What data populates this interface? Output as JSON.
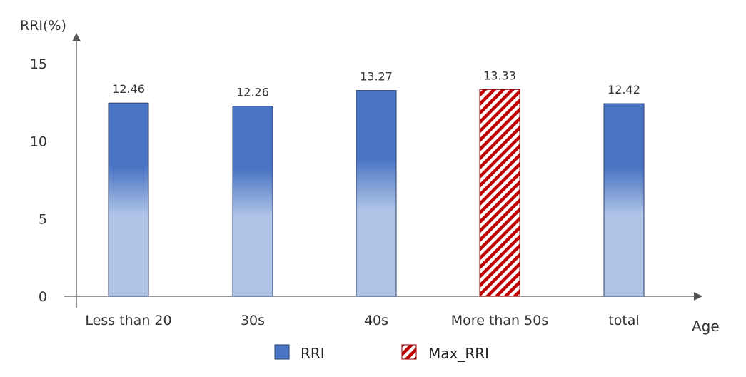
{
  "chart_data": {
    "type": "bar",
    "ylabel": "RRI(%)",
    "xlabel": "Age",
    "ylim": [
      0,
      15
    ],
    "yticks": [
      0,
      5,
      10,
      15
    ],
    "categories": [
      "Less than 20",
      "30s",
      "40s",
      "More than 50s",
      "total"
    ],
    "values": [
      12.46,
      12.26,
      13.27,
      13.33,
      12.42
    ],
    "value_labels": [
      "12.46",
      "12.26",
      "13.27",
      "13.33",
      "12.42"
    ],
    "highlight_index": 3,
    "legend": {
      "position": "bottom",
      "entries": [
        {
          "label": "RRI",
          "style": "solid-gradient"
        },
        {
          "label": "Max_RRI",
          "style": "red-hatched"
        }
      ]
    },
    "colors": {
      "bar_top": "#4a75c4",
      "bar_bottom": "#aec3e6",
      "bar_stroke": "#2a3f6b",
      "hatch": "#c00000",
      "axis": "#555555"
    }
  }
}
